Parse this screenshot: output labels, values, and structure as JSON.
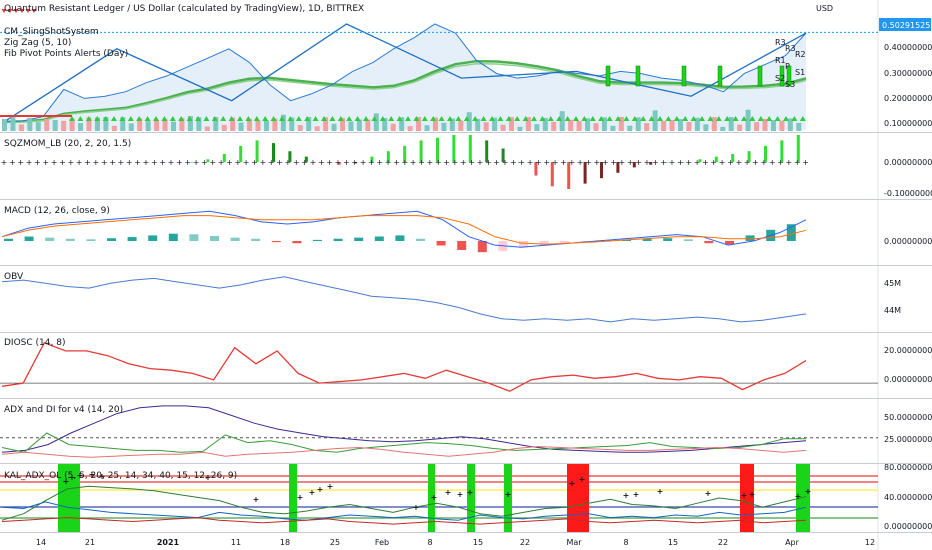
{
  "title": "Quantum Resistant Ledger / US Dollar (calculated by TradingView), 1D, BITTREX",
  "currency": "USD",
  "overlays": [
    "CM_SlingShotSystem",
    "Zig Zag (5, 10)",
    "Fib Pivot Points Alerts (Day)"
  ],
  "x_ticks": [
    "14",
    "21",
    "2021",
    "11",
    "18",
    "25",
    "Feb",
    "8",
    "15",
    "22",
    "Mar",
    "8",
    "15",
    "22",
    "Apr",
    "12"
  ],
  "price_badge": "0.50291525",
  "pivot_labels": [
    "R3",
    "R3",
    "R2",
    "R1",
    "P",
    "S1",
    "S2",
    "S3"
  ],
  "colors": {
    "up": "#26a69a",
    "down": "#ef5350",
    "price": "#2a7ad4",
    "badge": "#2196f3"
  },
  "chart_data": [
    {
      "type": "line",
      "name": "price",
      "yticks": [
        "0.40000000",
        "0.30000000",
        "0.20000000",
        "0.10000000"
      ],
      "ylim": [
        0.07,
        0.62
      ],
      "series": [
        {
          "name": "",
          "values": [
            0.105,
            0.11,
            0.13,
            0.25,
            0.21,
            0.22,
            0.24,
            0.28,
            0.31,
            0.35,
            0.39,
            0.43,
            0.37,
            0.27,
            0.2,
            0.23,
            0.27,
            0.33,
            0.37,
            0.43,
            0.48,
            0.54,
            0.5,
            0.38,
            0.32,
            0.3,
            0.31,
            0.33,
            0.32,
            0.31,
            0.33,
            0.32,
            0.3,
            0.29,
            0.27,
            0.24,
            0.32,
            0.36,
            0.4,
            0.5
          ]
        }
      ],
      "zigzag": [
        0.1,
        0.43,
        0.2,
        0.54,
        0.3,
        0.33,
        0.22,
        0.5
      ]
    },
    {
      "type": "bar",
      "name": "SQZMOM_LB (20, 2, 20, 1.5)",
      "yticks": [
        "0.00000000",
        "-0.10000000"
      ],
      "values": [
        0.0,
        0.01,
        0.03,
        0.06,
        0.08,
        0.07,
        0.04,
        0.02,
        0.0,
        -0.01,
        -0.005,
        0.02,
        0.04,
        0.06,
        0.08,
        0.09,
        0.1,
        0.1,
        0.08,
        0.05,
        0.0,
        -0.05,
        -0.09,
        -0.1,
        -0.08,
        -0.06,
        -0.04,
        -0.02,
        -0.01,
        0.0,
        0.0,
        0.01,
        0.02,
        0.03,
        0.04,
        0.06,
        0.08,
        0.1
      ]
    },
    {
      "type": "bar",
      "name": "MACD (12, 26, close, 9)",
      "yticks": [
        "0.00000000"
      ],
      "histogram": [
        0.004,
        0.008,
        0.006,
        0.004,
        0.003,
        0.005,
        0.007,
        0.01,
        0.013,
        0.012,
        0.009,
        0.006,
        0.004,
        -0.002,
        -0.004,
        0.002,
        0.004,
        0.006,
        0.008,
        0.01,
        0.004,
        -0.008,
        -0.016,
        -0.02,
        -0.018,
        -0.012,
        -0.008,
        -0.004,
        -0.002,
        0.0,
        0.002,
        0.004,
        0.005,
        0.003,
        -0.004,
        -0.006,
        0.01,
        0.02,
        0.03
      ],
      "macd": [
        0.0,
        0.02,
        0.03,
        0.035,
        0.04,
        0.045,
        0.05,
        0.055,
        0.06,
        0.05,
        0.035,
        0.03,
        0.035,
        0.045,
        0.05,
        0.055,
        0.06,
        0.04,
        0.0,
        -0.02,
        -0.025,
        -0.02,
        -0.015,
        -0.01,
        -0.005,
        0.0,
        0.005,
        0.0,
        -0.02,
        -0.01,
        0.01,
        0.04
      ],
      "signal": [
        0.0,
        0.015,
        0.025,
        0.03,
        0.035,
        0.04,
        0.045,
        0.05,
        0.05,
        0.045,
        0.04,
        0.04,
        0.04,
        0.045,
        0.05,
        0.05,
        0.05,
        0.045,
        0.03,
        0.0,
        -0.015,
        -0.018,
        -0.015,
        -0.012,
        -0.008,
        -0.004,
        0.0,
        0.0,
        -0.005,
        -0.005,
        0.0,
        0.015
      ]
    },
    {
      "type": "line",
      "name": "OBV",
      "yticks": [
        "45M",
        "44M"
      ],
      "ylim": [
        43.6,
        45.4
      ],
      "values": [
        45.1,
        45.15,
        45.05,
        44.95,
        44.9,
        45.05,
        45.15,
        45.2,
        45.1,
        45.0,
        44.9,
        45.0,
        45.15,
        45.25,
        45.1,
        44.95,
        44.8,
        44.65,
        44.6,
        44.55,
        44.45,
        44.3,
        44.1,
        43.95,
        43.9,
        43.95,
        43.9,
        43.95,
        43.85,
        43.95,
        43.9,
        43.95,
        44.0,
        43.95,
        43.85,
        43.9,
        44.0,
        44.1
      ]
    },
    {
      "type": "line",
      "name": "DIOSC (14, 8)",
      "yticks": [
        "20.00000000",
        "0.00000000"
      ],
      "ylim": [
        -8,
        28
      ],
      "values": [
        -2,
        0,
        25,
        20,
        20,
        17,
        12,
        9,
        8,
        6,
        2,
        22,
        12,
        20,
        6,
        0,
        1,
        2,
        4,
        6,
        3,
        8,
        4,
        0,
        -5,
        2,
        4,
        5,
        3,
        4,
        6,
        3,
        2,
        4,
        3,
        -4,
        2,
        6,
        14
      ]
    },
    {
      "type": "line",
      "name": "ADX and DI for v4 (14, 20)",
      "yticks": [
        "50.00000000",
        "25.00000000"
      ],
      "ylim": [
        0,
        62
      ],
      "series": [
        {
          "name": "",
          "values": [
            10,
            12,
            18,
            30,
            40,
            50,
            56,
            58,
            58,
            56,
            48,
            40,
            34,
            30,
            26,
            24,
            22,
            21,
            22,
            24,
            26,
            24,
            20,
            16,
            13,
            12,
            11,
            10,
            10,
            11,
            12,
            14,
            16,
            18,
            20,
            22
          ]
        },
        {
          "name": "",
          "values": [
            15,
            10,
            30,
            18,
            16,
            14,
            12,
            12,
            10,
            11,
            28,
            20,
            22,
            18,
            12,
            10,
            14,
            16,
            18,
            20,
            19,
            17,
            14,
            12,
            13,
            14,
            15,
            16,
            17,
            20,
            16,
            15,
            14,
            15,
            18,
            24,
            24
          ]
        },
        {
          "name": "",
          "values": [
            8,
            10,
            8,
            6,
            5,
            6,
            7,
            8,
            8,
            10,
            6,
            8,
            9,
            10,
            12,
            14,
            15,
            13,
            10,
            8,
            6,
            8,
            10,
            14,
            16,
            15,
            14,
            13,
            12,
            12,
            13,
            14,
            15,
            14,
            12,
            10,
            12
          ]
        }
      ]
    },
    {
      "type": "line",
      "name": "KAL_ADX_OL (5, 5, 20, 25, 14, 34, 40, 15, 12, 26, 9)",
      "yticks": [
        "80.00000000",
        "40.00000000",
        "0.00000000"
      ],
      "ylim": [
        -5,
        90
      ],
      "series": [
        {
          "name": "",
          "values": [
            10,
            20,
            40,
            58,
            62,
            60,
            58,
            55,
            50,
            45,
            40,
            30,
            22,
            20,
            24,
            30,
            34,
            28,
            22,
            30,
            36,
            30,
            20,
            16,
            22,
            28,
            30,
            36,
            42,
            34,
            32,
            28,
            36,
            44,
            40,
            30,
            38,
            46
          ]
        },
        {
          "name": "",
          "values": [
            30,
            28,
            38,
            30,
            26,
            22,
            20,
            18,
            16,
            14,
            22,
            18,
            16,
            12,
            10,
            14,
            18,
            16,
            14,
            16,
            12,
            10,
            18,
            14,
            12,
            16,
            18,
            20,
            14,
            16,
            14,
            18,
            16,
            22,
            18,
            20,
            22,
            30
          ]
        },
        {
          "name": "",
          "values": [
            8,
            10,
            12,
            14,
            12,
            10,
            8,
            10,
            12,
            14,
            10,
            8,
            6,
            8,
            10,
            12,
            8,
            6,
            4,
            6,
            8,
            6,
            4,
            6,
            8,
            10,
            12,
            8,
            6,
            8,
            10,
            8,
            6,
            8,
            10,
            6,
            8,
            10
          ]
        }
      ]
    }
  ]
}
